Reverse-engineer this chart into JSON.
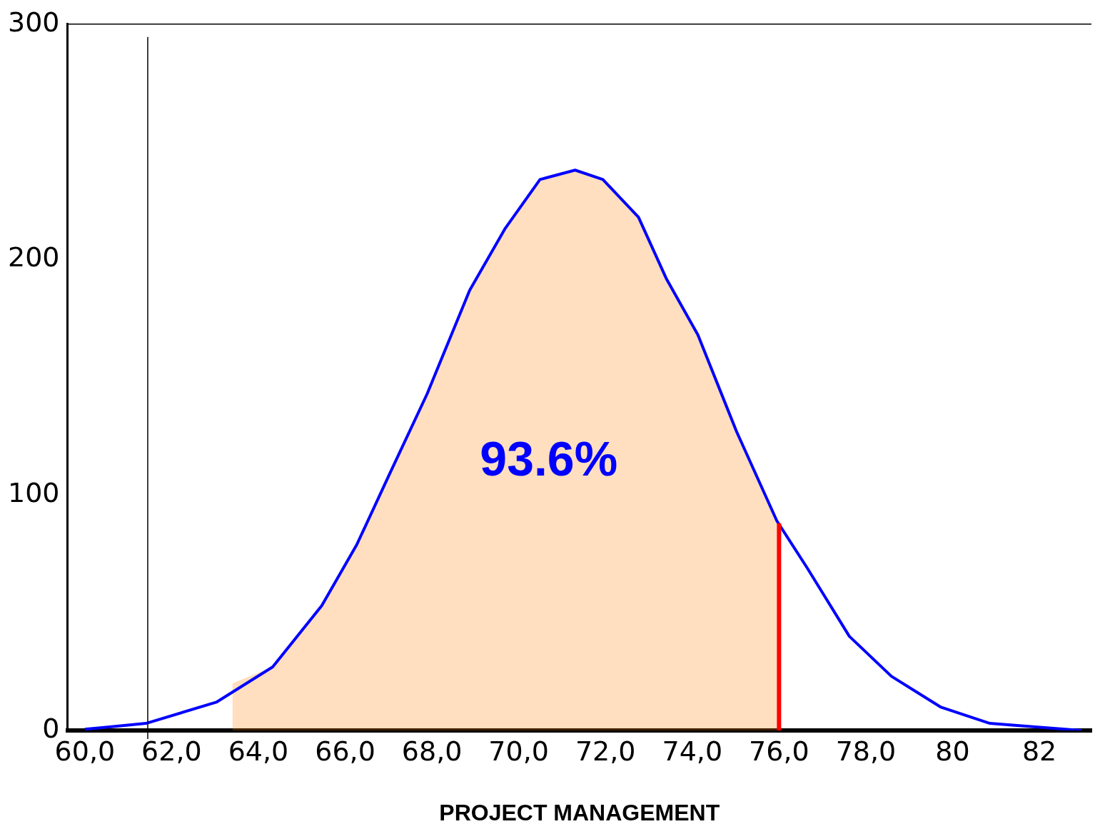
{
  "chart_data": {
    "type": "line",
    "xlabel": "PROJECT MANAGEMENT",
    "annotations": [
      "93.6%"
    ],
    "xlim": [
      59.6,
      83.2
    ],
    "ylim": [
      0,
      300
    ],
    "xticks": [
      {
        "value": 60,
        "label": "60,0"
      },
      {
        "value": 62,
        "label": "62,0"
      },
      {
        "value": 64,
        "label": "64,0"
      },
      {
        "value": 66,
        "label": "66,0"
      },
      {
        "value": 68,
        "label": "68,0"
      },
      {
        "value": 70,
        "label": "70,0"
      },
      {
        "value": 72,
        "label": "72,0"
      },
      {
        "value": 74,
        "label": "74,0"
      },
      {
        "value": 76,
        "label": "76,0"
      },
      {
        "value": 78,
        "label": "78,0"
      },
      {
        "value": 80,
        "label": "80"
      },
      {
        "value": 82,
        "label": "82"
      }
    ],
    "yticks": [
      0,
      100,
      200,
      300
    ],
    "grid": false,
    "legend": false,
    "marker": "none",
    "line_style": "solid",
    "ref_lines": [
      {
        "axis": "x",
        "value": 61.45,
        "color": "#000000"
      }
    ],
    "series": [
      {
        "type": "area",
        "color": "#ff7f00",
        "x": [
          63.4,
          64.33,
          65.46,
          66.27,
          67.0,
          67.89,
          68.87,
          69.68,
          70.49,
          71.3,
          71.94,
          72.76,
          73.4,
          74.13,
          75.02,
          75.95,
          76.0
        ],
        "values": [
          20,
          27,
          53,
          79,
          108,
          143,
          187,
          213,
          234,
          238,
          234,
          218,
          192,
          168,
          127,
          89,
          88
        ]
      },
      {
        "type": "line",
        "color": "#0000ff",
        "x": [
          60.0,
          61.41,
          63.03,
          64.33,
          65.46,
          66.27,
          67.0,
          67.89,
          68.87,
          69.68,
          70.49,
          71.3,
          71.94,
          72.76,
          73.4,
          74.13,
          75.02,
          75.95,
          76.65,
          77.62,
          78.59,
          79.72,
          80.86,
          82.97
        ],
        "values": [
          0.5,
          3,
          12,
          27,
          53,
          79,
          108,
          143,
          187,
          213,
          234,
          238,
          234,
          218,
          192,
          168,
          127,
          89,
          69,
          40,
          23,
          10,
          3,
          0
        ]
      },
      {
        "type": "line",
        "color": "#ff0000",
        "x": [
          76,
          76
        ],
        "values": [
          0,
          88
        ]
      }
    ]
  }
}
